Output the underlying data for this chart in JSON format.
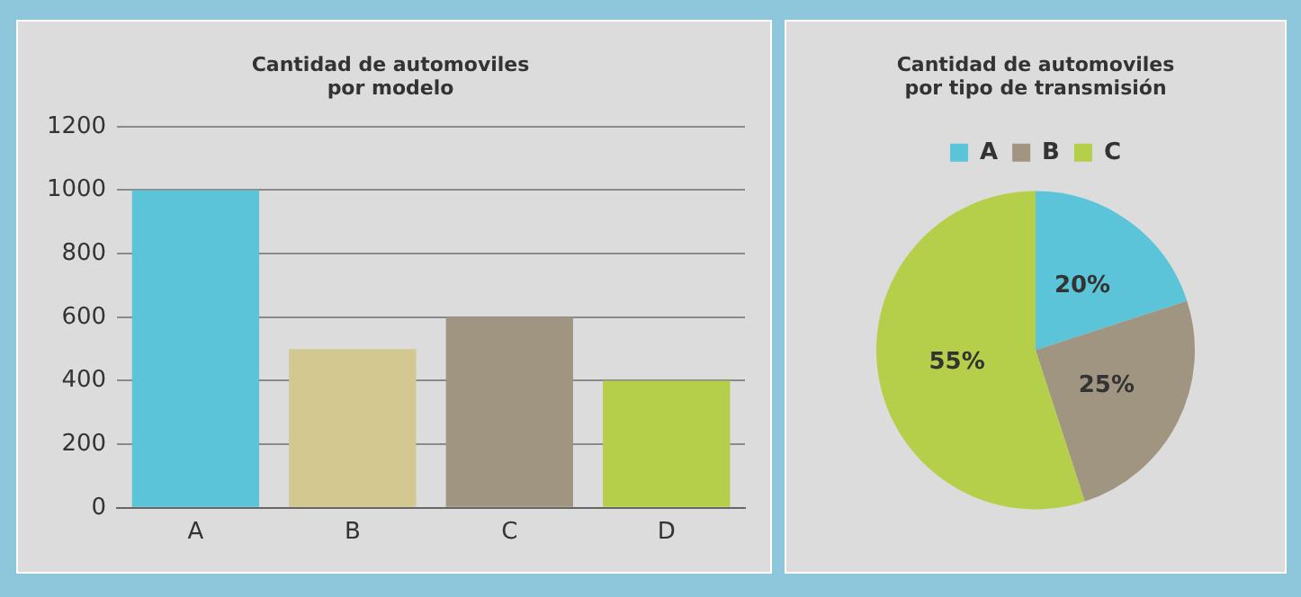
{
  "chart_data": [
    {
      "type": "bar",
      "title": "Cantidad de automoviles\npor modelo",
      "categories": [
        "A",
        "B",
        "C",
        "D"
      ],
      "values": [
        1000,
        500,
        600,
        400
      ],
      "colors": [
        "#5bc4d8",
        "#d3c88f",
        "#a09580",
        "#b6cf4b"
      ],
      "ylim": [
        0,
        1200
      ],
      "yticks": [
        0,
        200,
        400,
        600,
        800,
        1000,
        1200
      ],
      "grid": "y",
      "legend": false
    },
    {
      "type": "pie",
      "title": "Cantidad de automoviles\npor tipo de transmisión",
      "categories": [
        "A",
        "B",
        "C"
      ],
      "values": [
        20,
        25,
        55
      ],
      "colors": [
        "#5bc4d8",
        "#a09580",
        "#b6cf4b"
      ],
      "value_labels": [
        "20%",
        "25%",
        "55%"
      ],
      "legend": "top"
    }
  ]
}
